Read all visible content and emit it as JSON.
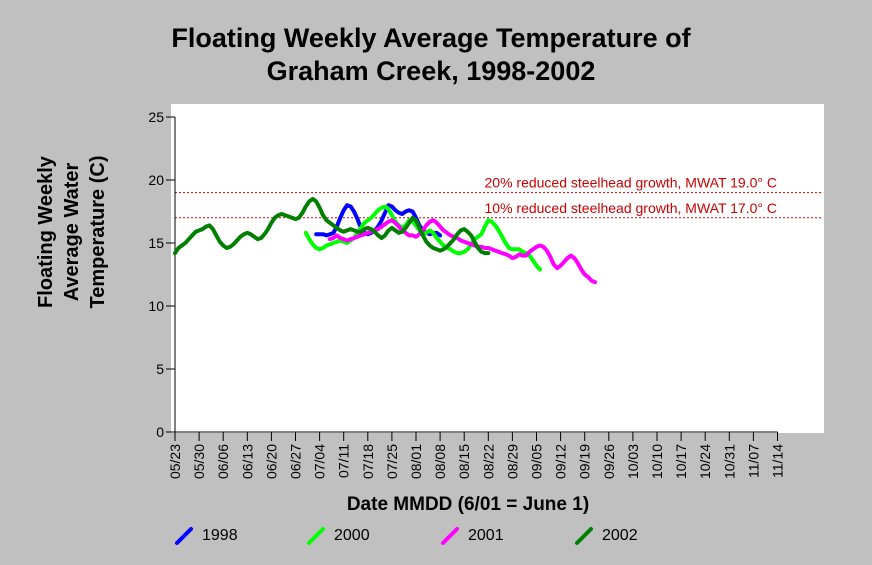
{
  "title_line1": "Floating Weekly Average Temperature of",
  "title_line2": "Graham Creek, 1998-2002",
  "chart_data": {
    "type": "line",
    "ylabel_lines": [
      "Floating Weekly",
      "Average Water",
      "Temperature (C)"
    ],
    "xlabel": "Date MMDD (6/01 = June 1)",
    "ylim": [
      0,
      25
    ],
    "yticks": [
      0,
      5,
      10,
      15,
      20,
      25
    ],
    "x_tick_labels": [
      "05/23",
      "05/30",
      "06/06",
      "06/13",
      "06/20",
      "06/27",
      "07/04",
      "07/11",
      "07/18",
      "07/25",
      "08/01",
      "08/08",
      "08/15",
      "08/22",
      "08/29",
      "09/05",
      "09/12",
      "09/19",
      "09/26",
      "10/03",
      "10/10",
      "10/17",
      "10/24",
      "10/31",
      "11/07",
      "11/14"
    ],
    "thresholds": [
      {
        "label": "20% reduced steelhead growth, MWAT 19.0° C",
        "value": 19.0,
        "color": "#cc0000"
      },
      {
        "label": "10% reduced steelhead growth, MWAT 17.0° C",
        "value": 17.0,
        "color": "#cc0000"
      }
    ],
    "series": [
      {
        "name": "1998",
        "color": "#0000ff",
        "points": [
          [
            41,
            15.7
          ],
          [
            42,
            15.7
          ],
          [
            43,
            15.7
          ],
          [
            44,
            15.6
          ],
          [
            45,
            15.7
          ],
          [
            46,
            15.8
          ],
          [
            47,
            16.3
          ],
          [
            48,
            17.0
          ],
          [
            49,
            17.6
          ],
          [
            50,
            18.0
          ],
          [
            51,
            17.9
          ],
          [
            52,
            17.5
          ],
          [
            53,
            16.9
          ],
          [
            54,
            16.2
          ],
          [
            55,
            15.8
          ],
          [
            56,
            15.7
          ],
          [
            57,
            15.8
          ],
          [
            58,
            16.0
          ],
          [
            59,
            16.3
          ],
          [
            60,
            16.8
          ],
          [
            61,
            17.4
          ],
          [
            62,
            18.0
          ],
          [
            63,
            17.9
          ],
          [
            64,
            17.6
          ],
          [
            65,
            17.4
          ],
          [
            66,
            17.3
          ],
          [
            67,
            17.5
          ],
          [
            68,
            17.6
          ],
          [
            69,
            17.5
          ],
          [
            70,
            17.0
          ],
          [
            71,
            16.4
          ],
          [
            72,
            16.0
          ],
          [
            73,
            15.8
          ],
          [
            74,
            15.7
          ],
          [
            75,
            15.8
          ],
          [
            76,
            15.8
          ],
          [
            77,
            15.6
          ]
        ]
      },
      {
        "name": "2000",
        "color": "#00ff00",
        "points": [
          [
            38,
            15.8
          ],
          [
            39,
            15.3
          ],
          [
            40,
            14.9
          ],
          [
            41,
            14.6
          ],
          [
            42,
            14.5
          ],
          [
            43,
            14.6
          ],
          [
            44,
            14.8
          ],
          [
            45,
            14.9
          ],
          [
            46,
            15.0
          ],
          [
            47,
            15.1
          ],
          [
            48,
            15.2
          ],
          [
            49,
            15.1
          ],
          [
            50,
            15.0
          ],
          [
            51,
            15.2
          ],
          [
            52,
            15.4
          ],
          [
            53,
            15.8
          ],
          [
            54,
            16.2
          ],
          [
            55,
            16.6
          ],
          [
            56,
            16.8
          ],
          [
            57,
            17.0
          ],
          [
            58,
            17.3
          ],
          [
            59,
            17.6
          ],
          [
            60,
            17.8
          ],
          [
            61,
            17.9
          ],
          [
            62,
            17.7
          ],
          [
            63,
            17.2
          ],
          [
            64,
            16.7
          ],
          [
            65,
            16.4
          ],
          [
            66,
            16.2
          ],
          [
            67,
            16.4
          ],
          [
            68,
            16.8
          ],
          [
            69,
            16.7
          ],
          [
            70,
            16.4
          ],
          [
            71,
            16.0
          ],
          [
            72,
            15.7
          ],
          [
            73,
            15.8
          ],
          [
            74,
            16.0
          ],
          [
            75,
            15.8
          ],
          [
            76,
            15.4
          ],
          [
            77,
            15.1
          ],
          [
            78,
            14.8
          ],
          [
            79,
            14.6
          ],
          [
            80,
            14.5
          ],
          [
            81,
            14.3
          ],
          [
            82,
            14.2
          ],
          [
            83,
            14.2
          ],
          [
            84,
            14.3
          ],
          [
            85,
            14.5
          ],
          [
            86,
            14.9
          ],
          [
            87,
            15.3
          ],
          [
            88,
            15.5
          ],
          [
            89,
            15.7
          ],
          [
            90,
            16.3
          ],
          [
            91,
            16.8
          ],
          [
            92,
            16.7
          ],
          [
            93,
            16.4
          ],
          [
            94,
            16.0
          ],
          [
            95,
            15.5
          ],
          [
            96,
            15.0
          ],
          [
            97,
            14.6
          ],
          [
            98,
            14.5
          ],
          [
            99,
            14.5
          ],
          [
            100,
            14.5
          ],
          [
            101,
            14.3
          ],
          [
            102,
            14.2
          ],
          [
            103,
            14.0
          ],
          [
            104,
            13.6
          ],
          [
            105,
            13.2
          ],
          [
            106,
            12.9
          ]
        ]
      },
      {
        "name": "2001",
        "color": "#ff00ff",
        "points": [
          [
            45,
            15.3
          ],
          [
            46,
            15.4
          ],
          [
            47,
            15.6
          ],
          [
            48,
            15.4
          ],
          [
            49,
            15.3
          ],
          [
            50,
            15.2
          ],
          [
            51,
            15.3
          ],
          [
            52,
            15.4
          ],
          [
            53,
            15.5
          ],
          [
            54,
            15.6
          ],
          [
            55,
            15.7
          ],
          [
            56,
            15.8
          ],
          [
            57,
            15.9
          ],
          [
            58,
            16.0
          ],
          [
            59,
            16.1
          ],
          [
            60,
            16.3
          ],
          [
            61,
            16.5
          ],
          [
            62,
            16.7
          ],
          [
            63,
            16.8
          ],
          [
            64,
            16.6
          ],
          [
            65,
            16.3
          ],
          [
            66,
            16.0
          ],
          [
            67,
            15.8
          ],
          [
            68,
            15.6
          ],
          [
            69,
            15.6
          ],
          [
            70,
            15.5
          ],
          [
            71,
            15.7
          ],
          [
            72,
            16.0
          ],
          [
            73,
            16.4
          ],
          [
            74,
            16.7
          ],
          [
            75,
            16.8
          ],
          [
            76,
            16.6
          ],
          [
            77,
            16.3
          ],
          [
            78,
            16.0
          ],
          [
            79,
            15.8
          ],
          [
            80,
            15.6
          ],
          [
            81,
            15.5
          ],
          [
            82,
            15.4
          ],
          [
            83,
            15.2
          ],
          [
            84,
            15.1
          ],
          [
            85,
            15.0
          ],
          [
            86,
            14.9
          ],
          [
            87,
            14.8
          ],
          [
            88,
            14.7
          ],
          [
            89,
            14.7
          ],
          [
            90,
            14.6
          ],
          [
            91,
            14.6
          ],
          [
            92,
            14.5
          ],
          [
            93,
            14.4
          ],
          [
            94,
            14.3
          ],
          [
            95,
            14.2
          ],
          [
            96,
            14.1
          ],
          [
            97,
            14.0
          ],
          [
            98,
            13.8
          ],
          [
            99,
            13.9
          ],
          [
            100,
            14.1
          ],
          [
            101,
            14.0
          ],
          [
            102,
            14.0
          ],
          [
            103,
            14.3
          ],
          [
            104,
            14.5
          ],
          [
            105,
            14.7
          ],
          [
            106,
            14.8
          ],
          [
            107,
            14.7
          ],
          [
            108,
            14.4
          ],
          [
            109,
            13.9
          ],
          [
            110,
            13.3
          ],
          [
            111,
            13.0
          ],
          [
            112,
            13.2
          ],
          [
            113,
            13.5
          ],
          [
            114,
            13.8
          ],
          [
            115,
            14.0
          ],
          [
            116,
            13.8
          ],
          [
            117,
            13.4
          ],
          [
            118,
            12.9
          ],
          [
            119,
            12.5
          ],
          [
            120,
            12.3
          ],
          [
            121,
            12.0
          ],
          [
            122,
            11.9
          ]
        ]
      },
      {
        "name": "2002",
        "color": "#008000",
        "points": [
          [
            0,
            14.2
          ],
          [
            1,
            14.6
          ],
          [
            2,
            14.8
          ],
          [
            3,
            15.0
          ],
          [
            4,
            15.3
          ],
          [
            5,
            15.6
          ],
          [
            6,
            15.9
          ],
          [
            7,
            16.0
          ],
          [
            8,
            16.1
          ],
          [
            9,
            16.3
          ],
          [
            10,
            16.4
          ],
          [
            11,
            16.1
          ],
          [
            12,
            15.6
          ],
          [
            13,
            15.1
          ],
          [
            14,
            14.8
          ],
          [
            15,
            14.6
          ],
          [
            16,
            14.7
          ],
          [
            17,
            14.9
          ],
          [
            18,
            15.2
          ],
          [
            19,
            15.5
          ],
          [
            20,
            15.7
          ],
          [
            21,
            15.8
          ],
          [
            22,
            15.7
          ],
          [
            23,
            15.5
          ],
          [
            24,
            15.3
          ],
          [
            25,
            15.4
          ],
          [
            26,
            15.7
          ],
          [
            27,
            16.1
          ],
          [
            28,
            16.6
          ],
          [
            29,
            17.0
          ],
          [
            30,
            17.2
          ],
          [
            31,
            17.3
          ],
          [
            32,
            17.2
          ],
          [
            33,
            17.1
          ],
          [
            34,
            17.0
          ],
          [
            35,
            16.9
          ],
          [
            36,
            17.0
          ],
          [
            37,
            17.4
          ],
          [
            38,
            17.9
          ],
          [
            39,
            18.3
          ],
          [
            40,
            18.5
          ],
          [
            41,
            18.3
          ],
          [
            42,
            17.8
          ],
          [
            43,
            17.2
          ],
          [
            44,
            16.8
          ],
          [
            45,
            16.6
          ],
          [
            46,
            16.4
          ],
          [
            47,
            16.2
          ],
          [
            48,
            16.0
          ],
          [
            49,
            15.9
          ],
          [
            50,
            16.0
          ],
          [
            51,
            16.1
          ],
          [
            52,
            16.0
          ],
          [
            53,
            15.9
          ],
          [
            54,
            15.9
          ],
          [
            55,
            16.1
          ],
          [
            56,
            16.2
          ],
          [
            57,
            16.1
          ],
          [
            58,
            15.9
          ],
          [
            59,
            15.6
          ],
          [
            60,
            15.4
          ],
          [
            61,
            15.6
          ],
          [
            62,
            16.0
          ],
          [
            63,
            16.2
          ],
          [
            64,
            16.0
          ],
          [
            65,
            15.8
          ],
          [
            66,
            15.9
          ],
          [
            67,
            16.2
          ],
          [
            68,
            16.6
          ],
          [
            69,
            17.0
          ],
          [
            70,
            16.8
          ],
          [
            71,
            16.2
          ],
          [
            72,
            15.6
          ],
          [
            73,
            15.1
          ],
          [
            74,
            14.8
          ],
          [
            75,
            14.6
          ],
          [
            76,
            14.5
          ],
          [
            77,
            14.4
          ],
          [
            78,
            14.5
          ],
          [
            79,
            14.7
          ],
          [
            80,
            15.0
          ],
          [
            81,
            15.3
          ],
          [
            82,
            15.7
          ],
          [
            83,
            16.0
          ],
          [
            84,
            16.1
          ],
          [
            85,
            15.9
          ],
          [
            86,
            15.6
          ],
          [
            87,
            15.1
          ],
          [
            88,
            14.6
          ],
          [
            89,
            14.3
          ],
          [
            90,
            14.2
          ],
          [
            91,
            14.2
          ]
        ]
      }
    ],
    "legend": [
      "1998",
      "2000",
      "2001",
      "2002"
    ]
  }
}
